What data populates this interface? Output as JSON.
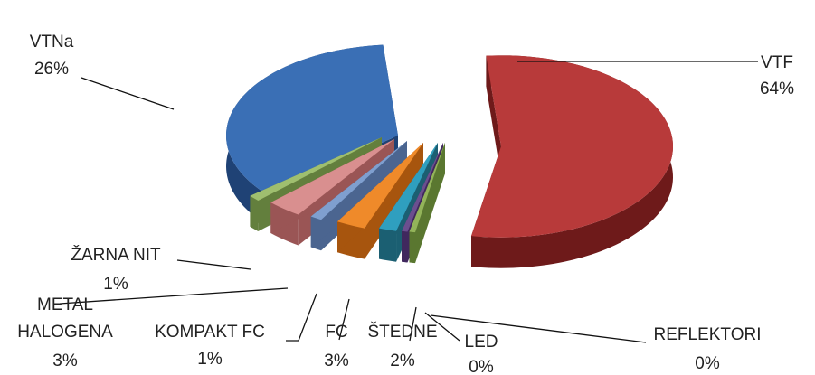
{
  "chart_data": {
    "type": "pie",
    "title": "",
    "style": "3d-exploded",
    "slices": [
      {
        "name": "VTF",
        "label": "VTF",
        "pct_label": "64%",
        "value": 64,
        "color": "#b83a3a",
        "dark": "#6e1a1a"
      },
      {
        "name": "REFLEKTORI",
        "label": "REFLEKTORI",
        "pct_label": "0%",
        "value": 0,
        "color": "#93b45a",
        "dark": "#5a7730"
      },
      {
        "name": "LED",
        "label": "LED",
        "pct_label": "0%",
        "value": 0,
        "color": "#6b4f8f",
        "dark": "#40285e"
      },
      {
        "name": "ŠTEDNE",
        "label": "ŠTEDNE",
        "pct_label": "2%",
        "value": 2,
        "color": "#2f9fbf",
        "dark": "#1b5f72"
      },
      {
        "name": "FC",
        "label": "FC",
        "pct_label": "3%",
        "value": 3,
        "color": "#ef8a2a",
        "dark": "#a7550e"
      },
      {
        "name": "KOMPAKT FC",
        "label": "KOMPAKT FC",
        "pct_label": "1%",
        "value": 1,
        "color": "#7f9fcf",
        "dark": "#4b6590"
      },
      {
        "name": "METAL HALOGENA",
        "label": [
          "METAL",
          "HALOGENA"
        ],
        "pct_label": "3%",
        "value": 3,
        "color": "#d98f8f",
        "dark": "#9a5555"
      },
      {
        "name": "ŽARNA NIT",
        "label": "ŽARNA NIT",
        "pct_label": "1%",
        "value": 1,
        "color": "#9fbf6f",
        "dark": "#637f3d"
      },
      {
        "name": "VTNa",
        "label": "VTNa",
        "pct_label": "26%",
        "value": 26,
        "color": "#3a6fb5",
        "dark": "#1f4275"
      }
    ]
  }
}
